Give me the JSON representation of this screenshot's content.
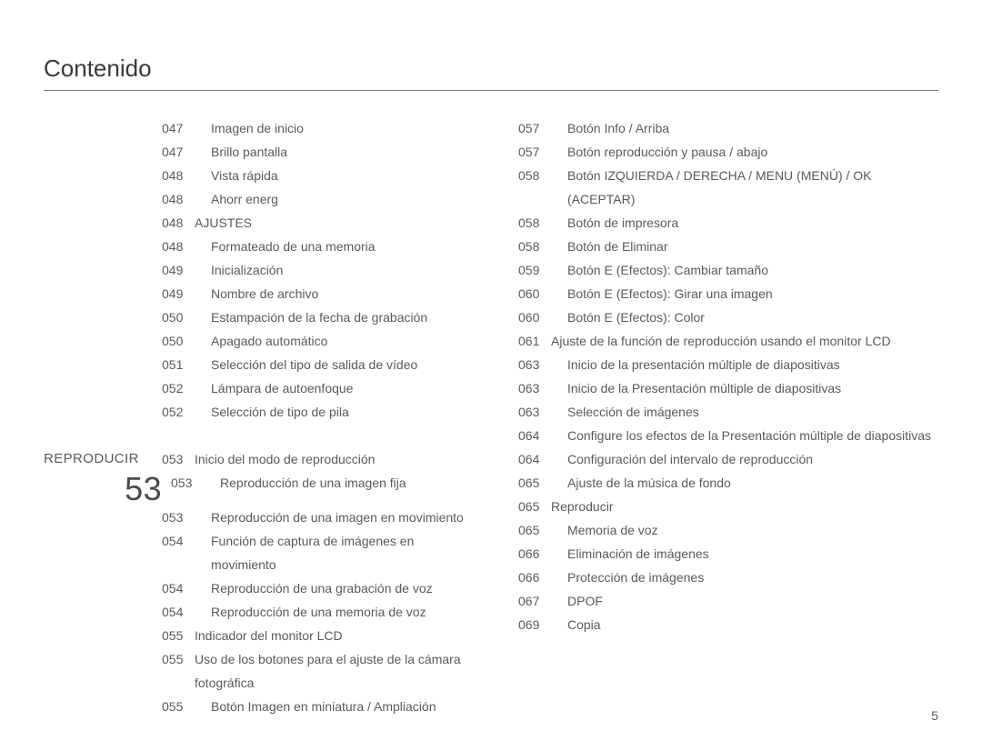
{
  "title": "Contenido",
  "page_number": "5",
  "section": {
    "label": "REPRODUCIR",
    "number": "53"
  },
  "col1": [
    {
      "sect": "",
      "page": "047",
      "text": "Imagen de inicio",
      "indent": 1
    },
    {
      "sect": "",
      "page": "047",
      "text": "Brillo pantalla",
      "indent": 1
    },
    {
      "sect": "",
      "page": "048",
      "text": "Vista rápida",
      "indent": 1
    },
    {
      "sect": "",
      "page": "048",
      "text": "Ahorr energ",
      "indent": 1
    },
    {
      "sect": "",
      "page": "048",
      "text": "AJUSTES",
      "indent": 0
    },
    {
      "sect": "",
      "page": "048",
      "text": "Formateado de una memoria",
      "indent": 1
    },
    {
      "sect": "",
      "page": "049",
      "text": "Inicialización",
      "indent": 1
    },
    {
      "sect": "",
      "page": "049",
      "text": "Nombre de archivo",
      "indent": 1
    },
    {
      "sect": "",
      "page": "050",
      "text": "Estampación de la fecha de grabación",
      "indent": 1
    },
    {
      "sect": "",
      "page": "050",
      "text": "Apagado automático",
      "indent": 1
    },
    {
      "sect": "",
      "page": "051",
      "text": "Selección del tipo de salida de vídeo",
      "indent": 1
    },
    {
      "sect": "",
      "page": "052",
      "text": "Lámpara de autoenfoque",
      "indent": 1
    },
    {
      "sect": "",
      "page": "052",
      "text": "Selección de tipo de pila",
      "indent": 1
    },
    {
      "gap": true
    },
    {
      "sect": "REPRODUCIR",
      "page": "053",
      "text": "Inicio del modo de reproducción",
      "indent": 0,
      "section_start": true
    },
    {
      "sect_num": "53",
      "page": "053",
      "text": "Reproducción de una imagen fija",
      "indent": 1
    },
    {
      "sect": "",
      "page": "053",
      "text": "Reproducción de una imagen en movimiento",
      "indent": 1
    },
    {
      "sect": "",
      "page": "054",
      "text": "Función de captura de imágenes en movimiento",
      "indent": 1
    },
    {
      "sect": "",
      "page": "054",
      "text": "Reproducción de una grabación de voz",
      "indent": 1
    },
    {
      "sect": "",
      "page": "054",
      "text": "Reproducción de una memoria de voz",
      "indent": 1
    },
    {
      "sect": "",
      "page": "055",
      "text": "Indicador del monitor LCD",
      "indent": 0
    },
    {
      "sect": "",
      "page": "055",
      "text": "Uso de los botones para el ajuste de la cámara fotográfica",
      "indent": 0
    },
    {
      "sect": "",
      "page": "055",
      "text": "Botón Imagen en miniatura / Ampliación",
      "indent": 1
    }
  ],
  "col2": [
    {
      "page": "057",
      "text": "Botón Info / Arriba",
      "indent": 1
    },
    {
      "page": "057",
      "text": "Botón reproducción y pausa / abajo",
      "indent": 1
    },
    {
      "page": "058",
      "text": "Botón IZQUIERDA / DERECHA / MENU (MENÚ) / OK (ACEPTAR)",
      "indent": 1
    },
    {
      "page": "058",
      "text": "Botón de impresora",
      "indent": 1
    },
    {
      "page": "058",
      "text": "Botón de Eliminar",
      "indent": 1
    },
    {
      "page": "059",
      "text": "Botón E (Efectos): Cambiar tamaño",
      "indent": 1
    },
    {
      "page": "060",
      "text": "Botón E (Efectos): Girar una imagen",
      "indent": 1
    },
    {
      "page": "060",
      "text": "Botón E (Efectos): Color",
      "indent": 1
    },
    {
      "page": "061",
      "text": "Ajuste de la función de reproducción usando el monitor LCD",
      "indent": 0
    },
    {
      "page": "063",
      "text": "Inicio de la presentación múltiple de diapositivas",
      "indent": 1
    },
    {
      "page": "063",
      "text": "Inicio de la Presentación múltiple de diapositivas",
      "indent": 1
    },
    {
      "page": "063",
      "text": "Selección de imágenes",
      "indent": 1
    },
    {
      "page": "064",
      "text": "Configure los efectos de la Presentación múltiple de diapositivas",
      "indent": 1
    },
    {
      "page": "064",
      "text": "Configuración del intervalo de reproducción",
      "indent": 1
    },
    {
      "page": "065",
      "text": "Ajuste de la música de fondo",
      "indent": 1
    },
    {
      "page": "065",
      "text": "Reproducir",
      "indent": 0
    },
    {
      "page": "065",
      "text": "Memoria de voz",
      "indent": 1
    },
    {
      "page": "066",
      "text": "Eliminación de imágenes",
      "indent": 1
    },
    {
      "page": "066",
      "text": "Protección de imágenes",
      "indent": 1
    },
    {
      "page": "067",
      "text": "DPOF",
      "indent": 1
    },
    {
      "page": "069",
      "text": "Copia",
      "indent": 1
    }
  ]
}
